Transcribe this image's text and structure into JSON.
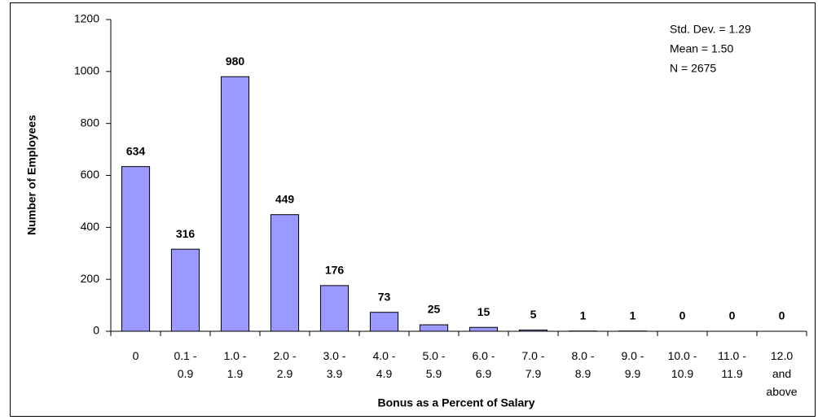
{
  "chart_data": {
    "type": "bar",
    "x_label": "Bonus as a Percent of Salary",
    "y_label": "Number of Employees",
    "annotations": [
      "Std. Dev. = 1.29",
      "Mean = 1.50",
      "N = 2675"
    ],
    "categories": [
      "0",
      "0.1 -\n0.9",
      "1.0 -\n1.9",
      "2.0 -\n2.9",
      "3.0 -\n3.9",
      "4.0 -\n4.9",
      "5.0 -\n5.9",
      "6.0 -\n6.9",
      "7.0 -\n7.9",
      "8.0 -\n8.9",
      "9.0 -\n9.9",
      "10.0 -\n10.9",
      "11.0 -\n11.9",
      "12.0\nand\nabove"
    ],
    "values": [
      634,
      316,
      980,
      449,
      176,
      73,
      25,
      15,
      5,
      1,
      1,
      0,
      0,
      0
    ],
    "color": "#9999ff",
    "ylim": [
      0,
      1200
    ],
    "yticks": [
      0,
      200,
      400,
      600,
      800,
      1000,
      1200
    ],
    "grid": false
  }
}
